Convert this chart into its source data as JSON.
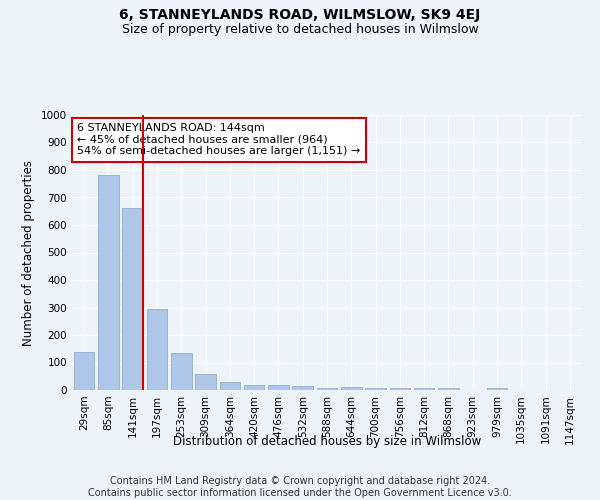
{
  "title": "6, STANNEYLANDS ROAD, WILMSLOW, SK9 4EJ",
  "subtitle": "Size of property relative to detached houses in Wilmslow",
  "xlabel": "Distribution of detached houses by size in Wilmslow",
  "ylabel": "Number of detached properties",
  "bar_labels": [
    "29sqm",
    "85sqm",
    "141sqm",
    "197sqm",
    "253sqm",
    "309sqm",
    "364sqm",
    "420sqm",
    "476sqm",
    "532sqm",
    "588sqm",
    "644sqm",
    "700sqm",
    "756sqm",
    "812sqm",
    "868sqm",
    "923sqm",
    "979sqm",
    "1035sqm",
    "1091sqm",
    "1147sqm"
  ],
  "bar_values": [
    140,
    780,
    660,
    295,
    135,
    57,
    30,
    20,
    20,
    15,
    8,
    10,
    8,
    8,
    8,
    8,
    0,
    8,
    0,
    0,
    0
  ],
  "bar_color": "#aec6e8",
  "bar_edge_color": "#7fa8cc",
  "highlight_bar_index": 2,
  "highlight_line_color": "#cc0000",
  "annotation_text": "6 STANNEYLANDS ROAD: 144sqm\n← 45% of detached houses are smaller (964)\n54% of semi-detached houses are larger (1,151) →",
  "annotation_box_color": "#ffffff",
  "annotation_box_edge_color": "#cc0000",
  "ylim": [
    0,
    1000
  ],
  "yticks": [
    0,
    100,
    200,
    300,
    400,
    500,
    600,
    700,
    800,
    900,
    1000
  ],
  "footer_line1": "Contains HM Land Registry data © Crown copyright and database right 2024.",
  "footer_line2": "Contains public sector information licensed under the Open Government Licence v3.0.",
  "background_color": "#eef2f9",
  "grid_color": "#ffffff",
  "title_fontsize": 10,
  "subtitle_fontsize": 9,
  "axis_label_fontsize": 8.5,
  "tick_fontsize": 7.5,
  "annotation_fontsize": 8,
  "footer_fontsize": 7
}
